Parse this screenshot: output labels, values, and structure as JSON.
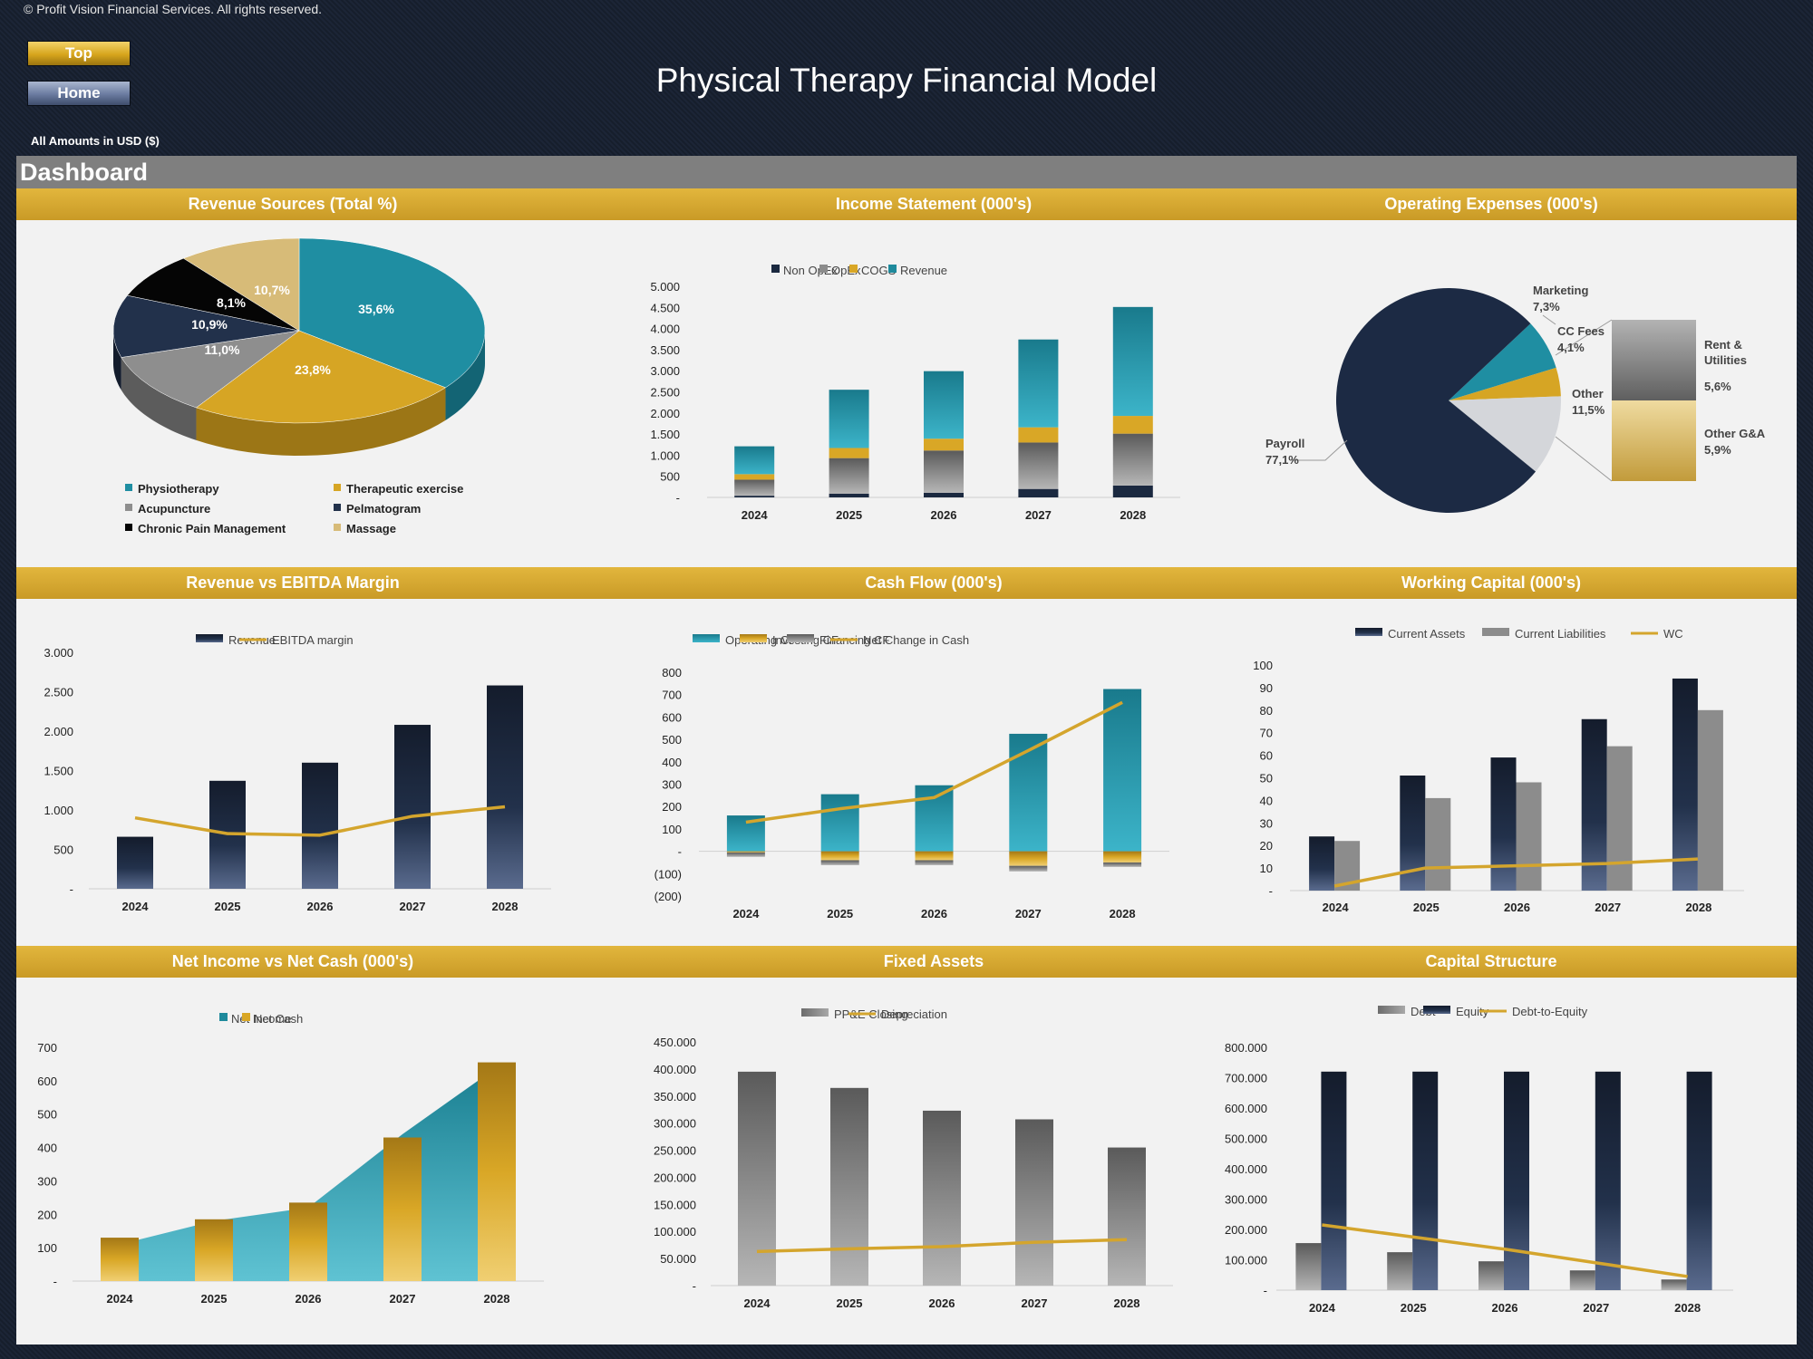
{
  "header": {
    "copyright": "© Profit Vision Financial Services. All rights reserved.",
    "top_button": "Top",
    "home_button": "Home",
    "title": "Physical Therapy Financial Model",
    "amounts_note": "All Amounts in  USD ($)",
    "dashboard": "Dashboard"
  },
  "panels": {
    "revenue_sources": "Revenue Sources (Total %)",
    "income_statement": "Income Statement (000's)",
    "operating_expenses": "Operating Expenses (000's)",
    "revenue_ebitda": "Revenue vs EBITDA Margin",
    "cash_flow": "Cash Flow (000's)",
    "working_capital": "Working Capital (000's)",
    "net_income_cash": "Net Income vs Net Cash (000's)",
    "fixed_assets": "Fixed Assets",
    "capital_structure": "Capital Structure"
  },
  "colors": {
    "teal": "#1e8a9c",
    "gold": "#d9a726",
    "navy": "#1b2940",
    "gray": "#8c8c8c",
    "black": "#050505",
    "tan": "#d9bd78",
    "band": "#d6aa30"
  },
  "chart_data": [
    {
      "id": "revenue_sources",
      "type": "pie",
      "title": "Revenue Sources (Total %)",
      "labels": [
        "Physiotherapy",
        "Therapeutic exercise",
        "Acupuncture",
        "Pelmatogram",
        "Chronic Pain Management",
        "Massage"
      ],
      "values": [
        35.6,
        23.8,
        11.0,
        10.9,
        8.1,
        10.7
      ],
      "value_labels": [
        "35,6%",
        "23,8%",
        "11,0%",
        "10,9%",
        "8,1%",
        "10,7%"
      ],
      "legend": "bottom"
    },
    {
      "id": "income_statement",
      "type": "bar",
      "stacked": true,
      "title": "Income Statement (000's)",
      "categories": [
        "2024",
        "2025",
        "2026",
        "2027",
        "2028"
      ],
      "series": [
        {
          "name": "Non OpEx",
          "values": [
            40,
            90,
            110,
            200,
            280
          ]
        },
        {
          "name": "OpEx",
          "values": [
            380,
            840,
            1000,
            1100,
            1230
          ]
        },
        {
          "name": "COGS",
          "values": [
            130,
            240,
            280,
            360,
            420
          ]
        },
        {
          "name": "Revenue",
          "values": [
            660,
            1380,
            1600,
            2080,
            2580
          ]
        }
      ],
      "ylim": [
        0,
        5000
      ],
      "yticks": [
        "-",
        "500",
        "1.000",
        "1.500",
        "2.000",
        "2.500",
        "3.000",
        "3.500",
        "4.000",
        "4.500",
        "5.000"
      ],
      "legend": "top"
    },
    {
      "id": "operating_expenses",
      "type": "pie",
      "title": "Operating Expenses (000's)",
      "labels": [
        "Payroll",
        "Marketing",
        "CC Fees",
        "Other",
        "Rent & Utilities",
        "Other G&A"
      ],
      "values": [
        77.1,
        7.3,
        4.1,
        11.5,
        5.6,
        5.9
      ],
      "value_labels": [
        "77,1%",
        "7,3%",
        "4,1%",
        "11,5%",
        "5,6%",
        "5,9%"
      ],
      "note": "pie of pie: Other split into Rent & Utilities and Other G&A"
    },
    {
      "id": "revenue_ebitda",
      "type": "bar",
      "title": "Revenue vs EBITDA Margin",
      "categories": [
        "2024",
        "2025",
        "2026",
        "2027",
        "2028"
      ],
      "series": [
        {
          "name": "Revenue",
          "kind": "bar",
          "values": [
            660,
            1370,
            1600,
            2080,
            2580
          ]
        },
        {
          "name": "EBITDA margin",
          "kind": "line",
          "values": [
            900,
            700,
            680,
            920,
            1040
          ]
        }
      ],
      "ylim": [
        0,
        3000
      ],
      "yticks": [
        "-",
        "500",
        "1.000",
        "1.500",
        "2.000",
        "2.500",
        "3.000"
      ],
      "legend": "top"
    },
    {
      "id": "cash_flow",
      "type": "bar",
      "title": "Cash Flow (000's)",
      "categories": [
        "2024",
        "2025",
        "2026",
        "2027",
        "2028"
      ],
      "series": [
        {
          "name": "Operating CF",
          "kind": "bar",
          "values": [
            160,
            255,
            295,
            525,
            725
          ]
        },
        {
          "name": "Investing CF",
          "kind": "bar",
          "values": [
            -5,
            -40,
            -40,
            -65,
            -50
          ]
        },
        {
          "name": "Financing CF",
          "kind": "bar",
          "values": [
            -20,
            -22,
            -22,
            -25,
            -20
          ]
        },
        {
          "name": "Net Change in Cash",
          "kind": "line",
          "values": [
            130,
            190,
            240,
            450,
            665
          ]
        }
      ],
      "ylim": [
        -200,
        800
      ],
      "yticks": [
        "(200)",
        "(100)",
        "-",
        "100",
        "200",
        "300",
        "400",
        "500",
        "600",
        "700",
        "800"
      ],
      "legend": "top"
    },
    {
      "id": "working_capital",
      "type": "bar",
      "title": "Working Capital (000's)",
      "categories": [
        "2024",
        "2025",
        "2026",
        "2027",
        "2028"
      ],
      "series": [
        {
          "name": "Current Assets",
          "kind": "bar",
          "values": [
            24,
            51,
            59,
            76,
            94
          ]
        },
        {
          "name": "Current Liabilities",
          "kind": "bar",
          "values": [
            22,
            41,
            48,
            64,
            80
          ]
        },
        {
          "name": "WC",
          "kind": "line",
          "values": [
            2,
            10,
            11,
            12,
            14
          ]
        }
      ],
      "ylim": [
        0,
        100
      ],
      "yticks": [
        "-",
        "10",
        "20",
        "30",
        "40",
        "50",
        "60",
        "70",
        "80",
        "90",
        "100"
      ],
      "legend": "top"
    },
    {
      "id": "net_income_cash",
      "type": "area",
      "title": "Net Income vs Net Cash (000's)",
      "categories": [
        "2024",
        "2025",
        "2026",
        "2027",
        "2028"
      ],
      "series": [
        {
          "name": "Net Income",
          "kind": "area",
          "values": [
            110,
            180,
            220,
            440,
            640
          ]
        },
        {
          "name": "Net Cash",
          "kind": "bar",
          "values": [
            130,
            185,
            235,
            430,
            655
          ]
        }
      ],
      "ylim": [
        0,
        700
      ],
      "yticks": [
        "-",
        "100",
        "200",
        "300",
        "400",
        "500",
        "600",
        "700"
      ],
      "legend": "top"
    },
    {
      "id": "fixed_assets",
      "type": "bar",
      "title": "Fixed Assets",
      "categories": [
        "2024",
        "2025",
        "2026",
        "2027",
        "2028"
      ],
      "series": [
        {
          "name": "PP&E Closing",
          "kind": "bar",
          "values": [
            395000,
            365000,
            323000,
            307000,
            255000
          ]
        },
        {
          "name": "Depreciation",
          "kind": "line",
          "values": [
            63000,
            68000,
            72000,
            80000,
            85000
          ]
        }
      ],
      "ylim": [
        0,
        450000
      ],
      "yticks": [
        "-",
        "50.000",
        "100.000",
        "150.000",
        "200.000",
        "250.000",
        "300.000",
        "350.000",
        "400.000",
        "450.000"
      ],
      "legend": "top"
    },
    {
      "id": "capital_structure",
      "type": "bar",
      "title": "Capital Structure",
      "categories": [
        "2024",
        "2025",
        "2026",
        "2027",
        "2028"
      ],
      "series": [
        {
          "name": "Debt",
          "kind": "bar",
          "values": [
            155000,
            125000,
            95000,
            65000,
            35000
          ]
        },
        {
          "name": "Equity",
          "kind": "bar",
          "values": [
            720000,
            720000,
            720000,
            720000,
            720000
          ]
        },
        {
          "name": "Debt-to-Equity",
          "kind": "line",
          "values": [
            215000,
            175000,
            135000,
            90000,
            45000
          ]
        }
      ],
      "ylim": [
        0,
        800000
      ],
      "yticks": [
        "-",
        "100.000",
        "200.000",
        "300.000",
        "400.000",
        "500.000",
        "600.000",
        "700.000",
        "800.000"
      ],
      "legend": "top"
    }
  ]
}
